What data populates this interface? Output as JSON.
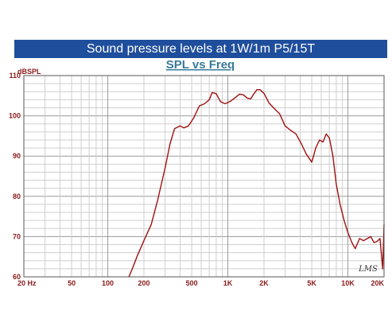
{
  "banner": {
    "title": "Sound pressure levels at 1W/1m P5/15T"
  },
  "chart_data": {
    "type": "line",
    "title": "SPL vs Freq",
    "ylabel": "dBSPL",
    "xlabel": "",
    "xscale": "log",
    "xlim": [
      20,
      20000
    ],
    "ylim": [
      60,
      110
    ],
    "grid": true,
    "y_ticks": [
      60,
      70,
      80,
      90,
      100,
      110
    ],
    "y_tick_labels": [
      "60",
      "70",
      "80",
      "90",
      "100",
      "110"
    ],
    "x_ticks": [
      20,
      50,
      100,
      200,
      500,
      1000,
      2000,
      5000,
      10000,
      20000
    ],
    "x_tick_labels": [
      "20 Hz",
      "50",
      "100",
      "200",
      "500",
      "1K",
      "2K",
      "5K",
      "10K",
      "20K"
    ],
    "watermark": "LMS",
    "series": [
      {
        "color": "#a01010",
        "x": [
          150,
          160,
          175,
          200,
          230,
          260,
          300,
          330,
          360,
          400,
          430,
          470,
          520,
          580,
          640,
          700,
          740,
          800,
          870,
          950,
          1050,
          1150,
          1250,
          1350,
          1450,
          1550,
          1650,
          1750,
          1850,
          2000,
          2200,
          2400,
          2700,
          3000,
          3300,
          3700,
          4100,
          4500,
          5000,
          5400,
          5800,
          6200,
          6600,
          7000,
          7500,
          8000,
          8600,
          9300,
          10000,
          10800,
          11500,
          12500,
          13500,
          14500,
          15500,
          16500,
          17500,
          18500,
          19500,
          20000
        ],
        "y": [
          59.5,
          62,
          65,
          69,
          73,
          79,
          87,
          93,
          96.8,
          97.5,
          97,
          97.5,
          99.5,
          102.5,
          103,
          104,
          105.8,
          105.5,
          103.5,
          103,
          103.6,
          104.5,
          105.4,
          105.2,
          104.4,
          104.2,
          105.5,
          106.5,
          106.5,
          105.6,
          103.2,
          102,
          100.5,
          97.5,
          96.5,
          95.5,
          93,
          90.5,
          88.5,
          92,
          94,
          93.5,
          95.5,
          94.5,
          90,
          83,
          78,
          74,
          71,
          68.5,
          67,
          69.5,
          69,
          69.5,
          70,
          68.5,
          68.8,
          69.5,
          62,
          73
        ]
      }
    ]
  }
}
